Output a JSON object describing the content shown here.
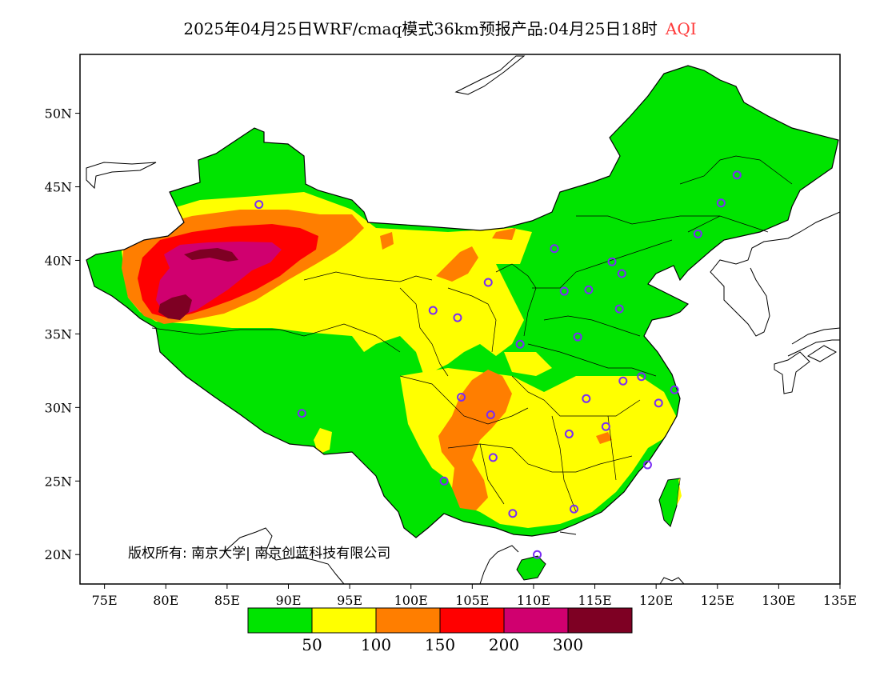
{
  "title": {
    "text": "2025年04月25日WRF/cmaq模式36km预报产品:04月25日18时",
    "highlight": "AQI"
  },
  "map": {
    "lon_min": 73,
    "lon_max": 135,
    "lat_min": 18,
    "lat_max": 54,
    "lon_ticks": [
      "75E",
      "80E",
      "85E",
      "90E",
      "95E",
      "100E",
      "105E",
      "110E",
      "115E",
      "120E",
      "125E",
      "130E",
      "135E"
    ],
    "lon_tick_values": [
      75,
      80,
      85,
      90,
      95,
      100,
      105,
      110,
      115,
      120,
      125,
      130,
      135
    ],
    "lat_ticks": [
      "20N",
      "25N",
      "30N",
      "35N",
      "40N",
      "45N",
      "50N"
    ],
    "lat_tick_values": [
      20,
      25,
      30,
      35,
      40,
      45,
      50
    ],
    "copyright": "版权所有: 南京大学| 南京创蓝科技有限公司",
    "stations": [
      [
        87.6,
        43.8
      ],
      [
        91.1,
        29.6
      ],
      [
        101.8,
        36.6
      ],
      [
        103.8,
        36.1
      ],
      [
        106.3,
        38.5
      ],
      [
        111.7,
        40.8
      ],
      [
        116.4,
        39.9
      ],
      [
        117.2,
        39.1
      ],
      [
        114.5,
        38.0
      ],
      [
        112.5,
        37.9
      ],
      [
        117.0,
        36.7
      ],
      [
        113.6,
        34.8
      ],
      [
        108.9,
        34.3
      ],
      [
        104.1,
        30.7
      ],
      [
        106.5,
        29.5
      ],
      [
        106.7,
        26.6
      ],
      [
        102.7,
        25.0
      ],
      [
        108.3,
        22.8
      ],
      [
        110.3,
        20.0
      ],
      [
        113.3,
        23.1
      ],
      [
        112.9,
        28.2
      ],
      [
        115.9,
        28.7
      ],
      [
        114.3,
        30.6
      ],
      [
        117.3,
        31.8
      ],
      [
        118.8,
        32.1
      ],
      [
        120.2,
        30.3
      ],
      [
        121.5,
        31.2
      ],
      [
        119.3,
        26.1
      ],
      [
        123.4,
        41.8
      ],
      [
        125.3,
        43.9
      ],
      [
        126.6,
        45.8
      ]
    ]
  },
  "legend": {
    "colors": [
      "#00e400",
      "#ffff00",
      "#ff7e00",
      "#ff0000",
      "#d0006f",
      "#7e0023"
    ],
    "labels": [
      "50",
      "100",
      "150",
      "200",
      "300"
    ]
  }
}
